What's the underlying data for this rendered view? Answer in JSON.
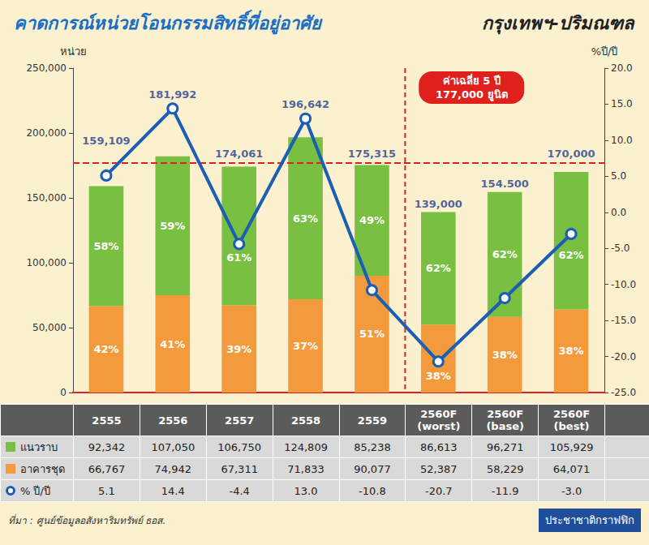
{
  "chart_data": {
    "type": "bar",
    "title": "คาดการณ์หน่วยโอนกรรมสิทธิ์ที่อยู่อาศัย",
    "subtitle": "กรุงเทพฯ-ปริมณฑล",
    "y_label": "หน่วย",
    "y2_label": "%ปี/ปี",
    "categories": [
      "2555",
      "2556",
      "2557",
      "2558",
      "2559",
      "2560F (worst)",
      "2560F (base)",
      "2560F (best)"
    ],
    "stacked": true,
    "series": [
      {
        "name": "แนวราบ",
        "type": "bar",
        "color": "#78bf42",
        "values": [
          92342,
          107050,
          106750,
          124809,
          85238,
          86613,
          96271,
          105929
        ],
        "value_labels": [
          "92,342",
          "107,050",
          "106,750",
          "124,809",
          "85,238",
          "86,613",
          "96,271",
          "105,929"
        ],
        "share_labels": [
          "58%",
          "59%",
          "61%",
          "63%",
          "49%",
          "62%",
          "62%",
          "62%"
        ]
      },
      {
        "name": "อาคารชุด",
        "type": "bar",
        "color": "#f39a3c",
        "values": [
          66767,
          74942,
          67311,
          71833,
          90077,
          52387,
          58229,
          64071
        ],
        "value_labels": [
          "66,767",
          "74,942",
          "67,311",
          "71,833",
          "90,077",
          "52,387",
          "58,229",
          "64,071"
        ],
        "share_labels": [
          "42%",
          "41%",
          "39%",
          "37%",
          "51%",
          "38%",
          "38%",
          "38%"
        ]
      },
      {
        "name": "% ปี/ปี",
        "type": "line",
        "axis": "y2",
        "color": "#1a5fb4",
        "marker": "circle",
        "values": [
          5.1,
          14.4,
          -4.4,
          13.0,
          -10.8,
          -20.7,
          -11.9,
          -3.0
        ],
        "value_labels": [
          "5.1",
          "14.4",
          "-4.4",
          "13.0",
          "-10.8",
          "-20.7",
          "-11.9",
          "-3.0"
        ]
      }
    ],
    "totals": [
      159109,
      181992,
      174061,
      196642,
      175315,
      139000,
      154500,
      170000
    ],
    "total_labels": [
      "159,109",
      "181,992",
      "174,061",
      "196,642",
      "175,315",
      "139,000",
      "154.500",
      "170,000"
    ],
    "annotation": {
      "text": [
        "ค่าเฉลี่ย 5 ปี",
        "177,000 ยูนิต"
      ],
      "value": 177000
    },
    "ylim": [
      0,
      250000
    ],
    "yticks": [
      0,
      {
        "value": 50000,
        "label": "50,000"
      },
      {
        "value": 100000,
        "label": "100,000"
      },
      {
        "value": 150000,
        "label": "150,000"
      },
      {
        "value": 200000,
        "label": "200,000"
      },
      {
        "value": 250000,
        "label": "250,000"
      }
    ],
    "y2lim": [
      -25,
      20
    ],
    "y2ticks": [
      {
        "value": -25,
        "label": "-25.0"
      },
      {
        "value": -20,
        "label": "-20.0"
      },
      {
        "value": -15,
        "label": "-15.0"
      },
      {
        "value": -10,
        "label": "-10.0"
      },
      {
        "value": -5,
        "label": "-5.0"
      },
      {
        "value": 0,
        "label": "0.0"
      },
      {
        "value": 5,
        "label": "5.0"
      },
      {
        "value": 10,
        "label": "10.0"
      },
      {
        "value": 15,
        "label": "15.0"
      },
      {
        "value": 20,
        "label": "20.0"
      }
    ],
    "grid": false,
    "tick_labels": "y",
    "source": "ที่มา : ศูนย์ข้อมูลอสังหาริมทรัพย์ ธอส.",
    "credit": "ประชาชาติกราฟฟิก"
  }
}
